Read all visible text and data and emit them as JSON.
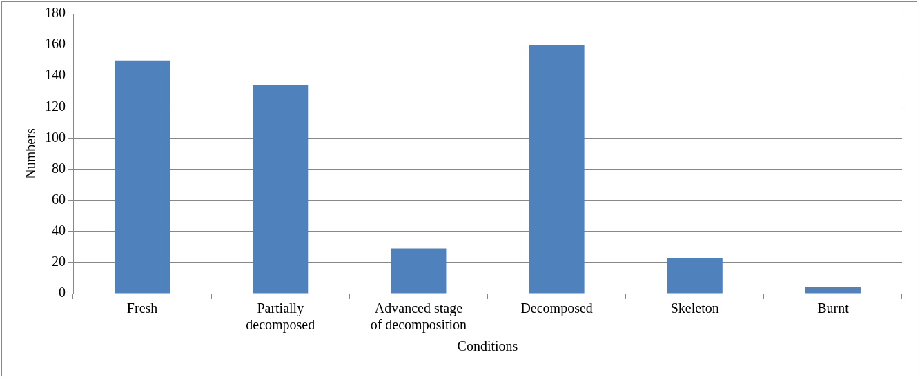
{
  "chart_data": {
    "type": "bar",
    "xlabel": "Conditions",
    "ylabel": "Numbers",
    "categories": [
      "Fresh",
      "Partially decomposed",
      "Advanced stage of decomposition",
      "Decomposed",
      "Skeleton",
      "Burnt"
    ],
    "values": [
      150,
      134,
      29,
      160,
      23,
      4
    ],
    "color": "#4f81bd",
    "ylim": [
      0,
      180
    ],
    "yticks": [
      0,
      20,
      40,
      60,
      80,
      100,
      120,
      140,
      160,
      180
    ],
    "grid": "y",
    "legend": false
  }
}
